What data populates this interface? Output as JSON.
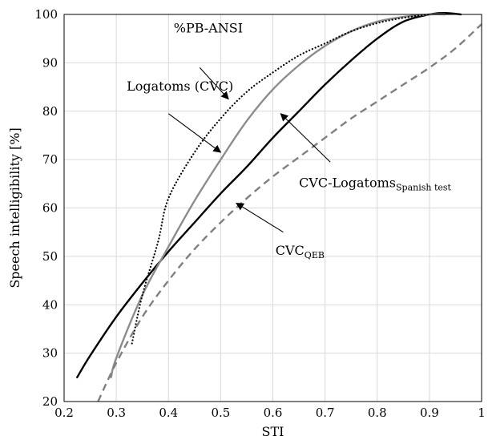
{
  "chart_data": {
    "type": "line",
    "title": "",
    "xlabel": "STI",
    "ylabel": "Speech intelligibility [%]",
    "xlim": [
      0.2,
      1.0
    ],
    "ylim": [
      20,
      100
    ],
    "grid": true,
    "x_ticks": [
      "0.2",
      "0.3",
      "0.4",
      "0.5",
      "0.6",
      "0.7",
      "0.8",
      "0.9",
      "1"
    ],
    "y_ticks": [
      "20",
      "30",
      "40",
      "50",
      "60",
      "70",
      "80",
      "90",
      "100"
    ],
    "series": [
      {
        "key": "cvc_logatoms_spanish",
        "color": "#000000",
        "dash": "solid",
        "x": [
          0.225,
          0.25,
          0.3,
          0.35,
          0.4,
          0.45,
          0.5,
          0.55,
          0.6,
          0.65,
          0.7,
          0.75,
          0.8,
          0.85,
          0.9,
          0.93,
          0.96
        ],
        "y": [
          25,
          29.5,
          37.5,
          44.5,
          51,
          57,
          63,
          68.5,
          74.5,
          80,
          85.5,
          90.5,
          95,
          98.5,
          100,
          100.3,
          100
        ]
      },
      {
        "key": "logatoms_cvc",
        "color": "#8c8c8c",
        "dash": "solid",
        "x": [
          0.29,
          0.3,
          0.35,
          0.4,
          0.45,
          0.5,
          0.55,
          0.6,
          0.65,
          0.7,
          0.75,
          0.8,
          0.85,
          0.9,
          0.93
        ],
        "y": [
          25,
          29,
          42,
          52,
          61.5,
          70,
          78,
          84.5,
          89.5,
          93.5,
          96.5,
          98.5,
          99.5,
          100,
          100
        ]
      },
      {
        "key": "pb_ansi",
        "color": "#000000",
        "dash": "dotted",
        "x": [
          0.33,
          0.35,
          0.38,
          0.4,
          0.45,
          0.5,
          0.55,
          0.6,
          0.65,
          0.7,
          0.75,
          0.8,
          0.85,
          0.9
        ],
        "y": [
          32,
          42,
          53,
          62,
          71.5,
          78.5,
          84,
          88,
          91.5,
          94,
          96.5,
          98.2,
          99.3,
          100
        ]
      },
      {
        "key": "cvc_qeb",
        "color": "#808080",
        "dash": "dashed",
        "x": [
          0.265,
          0.3,
          0.35,
          0.4,
          0.45,
          0.5,
          0.55,
          0.6,
          0.65,
          0.7,
          0.75,
          0.8,
          0.85,
          0.9,
          0.95,
          1.0
        ],
        "y": [
          20,
          28,
          37.5,
          45,
          51.5,
          57,
          62,
          66.5,
          70.5,
          74.5,
          78.5,
          82,
          85.5,
          89,
          93,
          98
        ]
      }
    ],
    "annotations": [
      {
        "key": "pb_ansi",
        "text": "%PB-ANSI",
        "sub": "",
        "text_at": [
          0.41,
          96.3
        ],
        "arrow_from": [
          0.46,
          89
        ],
        "arrow_to": [
          0.515,
          82.5
        ]
      },
      {
        "key": "logatoms_cvc",
        "text": "Logatoms (CVC)",
        "sub": "",
        "text_at": [
          0.32,
          84.3
        ],
        "arrow_from": [
          0.4,
          79.5
        ],
        "arrow_to": [
          0.5,
          71.5
        ]
      },
      {
        "key": "cvc_logatoms_spanish",
        "text": "CVC-Logatoms",
        "sub": "Spanish test",
        "text_at": [
          0.65,
          64.3
        ],
        "arrow_from": [
          0.71,
          69.5
        ],
        "arrow_to": [
          0.615,
          79.5
        ]
      },
      {
        "key": "cvc_qeb",
        "text": "CVC",
        "sub": "QEB",
        "text_at": [
          0.605,
          50.3
        ],
        "arrow_from": [
          0.62,
          55
        ],
        "arrow_to": [
          0.53,
          61
        ]
      }
    ]
  }
}
